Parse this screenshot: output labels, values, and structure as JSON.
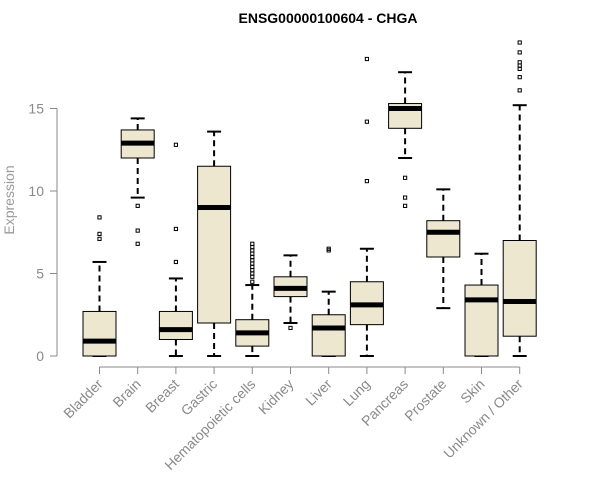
{
  "chart_data": {
    "type": "boxplot",
    "title": "ENSG00000100604 - CHGA",
    "xlabel": "",
    "ylabel": "Expression",
    "ylim": [
      0,
      19.5
    ],
    "yticks": [
      0,
      5,
      10,
      15
    ],
    "style": {
      "box_fill": "#ede7cf",
      "line_color": "#000000",
      "axis_color": "#8a8a8a"
    },
    "categories": [
      "Bladder",
      "Brain",
      "Breast",
      "Gastric",
      "Hematopoietic cells",
      "Kidney",
      "Liver",
      "Lung",
      "Pancreas",
      "Prostate",
      "Skin",
      "Unknown / Other"
    ],
    "boxes": [
      {
        "name": "Bladder",
        "whislo": 0.0,
        "q1": 0.0,
        "med": 0.9,
        "q3": 2.7,
        "whishi": 5.7,
        "fliers": [
          7.1,
          7.4,
          8.4
        ]
      },
      {
        "name": "Brain",
        "whislo": 9.6,
        "q1": 12.0,
        "med": 12.9,
        "q3": 13.7,
        "whishi": 14.4,
        "fliers": [
          6.8,
          7.6,
          9.1
        ]
      },
      {
        "name": "Breast",
        "whislo": 0.0,
        "q1": 1.0,
        "med": 1.6,
        "q3": 2.7,
        "whishi": 4.7,
        "fliers": [
          5.7,
          7.7,
          12.8
        ]
      },
      {
        "name": "Gastric",
        "whislo": 0.0,
        "q1": 2.0,
        "med": 9.0,
        "q3": 11.5,
        "whishi": 13.6,
        "fliers": []
      },
      {
        "name": "Hematopoietic cells",
        "whislo": 0.0,
        "q1": 0.6,
        "med": 1.4,
        "q3": 2.2,
        "whishi": 4.3,
        "fliers": [
          4.5,
          4.8,
          5.0,
          5.2,
          5.4,
          5.6,
          5.8,
          6.0,
          6.2,
          6.4,
          6.6,
          6.8
        ]
      },
      {
        "name": "Kidney",
        "whislo": 2.0,
        "q1": 3.6,
        "med": 4.1,
        "q3": 4.8,
        "whishi": 6.1,
        "fliers": [
          1.7
        ]
      },
      {
        "name": "Liver",
        "whislo": 0.0,
        "q1": 0.0,
        "med": 1.7,
        "q3": 2.5,
        "whishi": 3.9,
        "fliers": [
          6.4,
          6.5
        ]
      },
      {
        "name": "Lung",
        "whislo": 0.0,
        "q1": 1.9,
        "med": 3.1,
        "q3": 4.5,
        "whishi": 6.5,
        "fliers": [
          10.6,
          14.2,
          18.0
        ]
      },
      {
        "name": "Pancreas",
        "whislo": 12.0,
        "q1": 13.8,
        "med": 15.0,
        "q3": 15.3,
        "whishi": 17.2,
        "fliers": [
          9.1,
          9.6,
          10.8
        ]
      },
      {
        "name": "Prostate",
        "whislo": 2.9,
        "q1": 6.0,
        "med": 7.5,
        "q3": 8.2,
        "whishi": 10.1,
        "fliers": []
      },
      {
        "name": "Skin",
        "whislo": 0.0,
        "q1": 0.0,
        "med": 3.4,
        "q3": 4.3,
        "whishi": 6.2,
        "fliers": []
      },
      {
        "name": "Unknown / Other",
        "whislo": 0.0,
        "q1": 1.2,
        "med": 3.3,
        "q3": 7.0,
        "whishi": 15.2,
        "fliers": [
          16.1,
          16.9,
          17.4,
          17.6,
          17.8,
          18.4,
          19.0
        ]
      }
    ]
  }
}
